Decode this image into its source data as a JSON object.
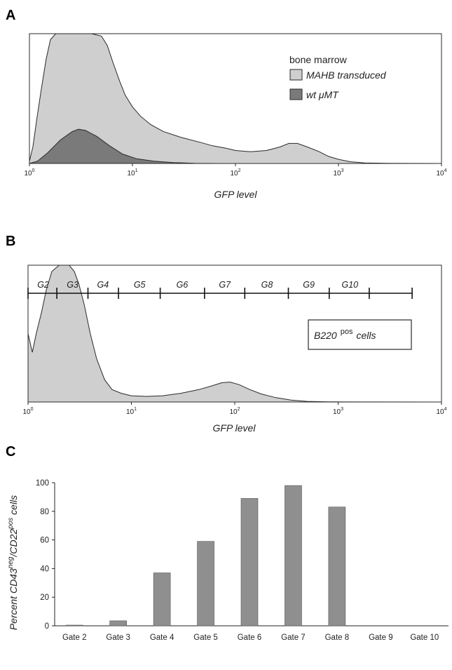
{
  "panels": {
    "a": {
      "letter": "A"
    },
    "b": {
      "letter": "B"
    },
    "c": {
      "letter": "C"
    }
  },
  "colors": {
    "light_fill": "#cfcfcf",
    "dark_fill": "#7a7a7a",
    "bar_fill": "#8f8f8f",
    "outline": "#2a2a2a"
  },
  "chart_data": [
    {
      "panel": "A",
      "type": "area",
      "xlabel": "GFP level",
      "ylabel": "",
      "x_scale": "log",
      "xlim": [
        1,
        10000
      ],
      "x_ticks": [
        {
          "base": "10",
          "exp": "0",
          "value": 1
        },
        {
          "base": "10",
          "exp": "1",
          "value": 10
        },
        {
          "base": "10",
          "exp": "2",
          "value": 100
        },
        {
          "base": "10",
          "exp": "3",
          "value": 1000
        },
        {
          "base": "10",
          "exp": "4",
          "value": 10000
        }
      ],
      "legend_title": "bone marrow",
      "legend_position": "top-right",
      "series": [
        {
          "name": "MAHB transduced",
          "color": "#cfcfcf",
          "points": [
            {
              "x": 1.0,
              "y": 0.02
            },
            {
              "x": 1.08,
              "y": 0.14
            },
            {
              "x": 1.18,
              "y": 0.38
            },
            {
              "x": 1.3,
              "y": 0.62
            },
            {
              "x": 1.45,
              "y": 0.88
            },
            {
              "x": 1.6,
              "y": 1.05
            },
            {
              "x": 1.8,
              "y": 1.1
            },
            {
              "x": 2.2,
              "y": 1.1
            },
            {
              "x": 3.0,
              "y": 1.1
            },
            {
              "x": 4.0,
              "y": 1.1
            },
            {
              "x": 5.0,
              "y": 1.08
            },
            {
              "x": 5.7,
              "y": 1.0
            },
            {
              "x": 6.5,
              "y": 0.85
            },
            {
              "x": 7.5,
              "y": 0.7
            },
            {
              "x": 8.5,
              "y": 0.58
            },
            {
              "x": 10,
              "y": 0.48
            },
            {
              "x": 12,
              "y": 0.4
            },
            {
              "x": 15,
              "y": 0.33
            },
            {
              "x": 20,
              "y": 0.27
            },
            {
              "x": 30,
              "y": 0.22
            },
            {
              "x": 45,
              "y": 0.18
            },
            {
              "x": 60,
              "y": 0.15
            },
            {
              "x": 80,
              "y": 0.13
            },
            {
              "x": 100,
              "y": 0.11
            },
            {
              "x": 140,
              "y": 0.1
            },
            {
              "x": 200,
              "y": 0.11
            },
            {
              "x": 270,
              "y": 0.14
            },
            {
              "x": 330,
              "y": 0.17
            },
            {
              "x": 400,
              "y": 0.17
            },
            {
              "x": 500,
              "y": 0.14
            },
            {
              "x": 650,
              "y": 0.1
            },
            {
              "x": 800,
              "y": 0.06
            },
            {
              "x": 1000,
              "y": 0.035
            },
            {
              "x": 1300,
              "y": 0.015
            },
            {
              "x": 1800,
              "y": 0.005
            },
            {
              "x": 3000,
              "y": 0.001
            },
            {
              "x": 10000,
              "y": 0.0
            }
          ]
        },
        {
          "name": "wt μMT",
          "color": "#7a7a7a",
          "points": [
            {
              "x": 1.0,
              "y": 0.0
            },
            {
              "x": 1.2,
              "y": 0.02
            },
            {
              "x": 1.5,
              "y": 0.09
            },
            {
              "x": 2.0,
              "y": 0.2
            },
            {
              "x": 2.6,
              "y": 0.27
            },
            {
              "x": 3.0,
              "y": 0.29
            },
            {
              "x": 3.5,
              "y": 0.28
            },
            {
              "x": 4.5,
              "y": 0.23
            },
            {
              "x": 6.0,
              "y": 0.15
            },
            {
              "x": 8.0,
              "y": 0.08
            },
            {
              "x": 11,
              "y": 0.04
            },
            {
              "x": 16,
              "y": 0.02
            },
            {
              "x": 25,
              "y": 0.008
            },
            {
              "x": 40,
              "y": 0.002
            },
            {
              "x": 70,
              "y": 0.0
            },
            {
              "x": 10000,
              "y": 0.0
            }
          ]
        }
      ]
    },
    {
      "panel": "B",
      "type": "area",
      "xlabel": "GFP level",
      "ylabel": "",
      "x_scale": "log",
      "xlim": [
        1,
        10000
      ],
      "x_ticks": [
        {
          "base": "10",
          "exp": "0",
          "value": 1
        },
        {
          "base": "10",
          "exp": "1",
          "value": 10
        },
        {
          "base": "10",
          "exp": "2",
          "value": 100
        },
        {
          "base": "10",
          "exp": "3",
          "value": 1000
        },
        {
          "base": "10",
          "exp": "4",
          "value": 10000
        }
      ],
      "annotation": {
        "main": "B220",
        "sup": "pos",
        "tail": "cells"
      },
      "gate_marks": [
        1,
        1.9,
        3.8,
        7.5,
        19,
        51,
        125,
        330,
        820,
        2000,
        5200
      ],
      "gates": [
        {
          "label": "G2",
          "x": 1.4
        },
        {
          "label": "G3",
          "x": 2.7
        },
        {
          "label": "G4",
          "x": 5.3
        },
        {
          "label": "G5",
          "x": 12
        },
        {
          "label": "G6",
          "x": 31
        },
        {
          "label": "G7",
          "x": 80
        },
        {
          "label": "G8",
          "x": 205
        },
        {
          "label": "G9",
          "x": 520
        },
        {
          "label": "G10",
          "x": 1300
        }
      ],
      "series": [
        {
          "name": "",
          "color": "#cfcfcf",
          "points": [
            {
              "x": 1.0,
              "y": 0.55
            },
            {
              "x": 1.1,
              "y": 0.4
            },
            {
              "x": 1.2,
              "y": 0.55
            },
            {
              "x": 1.35,
              "y": 0.72
            },
            {
              "x": 1.5,
              "y": 0.9
            },
            {
              "x": 1.7,
              "y": 1.05
            },
            {
              "x": 2.0,
              "y": 1.1
            },
            {
              "x": 2.5,
              "y": 1.1
            },
            {
              "x": 2.8,
              "y": 1.05
            },
            {
              "x": 3.1,
              "y": 0.95
            },
            {
              "x": 3.5,
              "y": 0.78
            },
            {
              "x": 4.0,
              "y": 0.55
            },
            {
              "x": 4.6,
              "y": 0.35
            },
            {
              "x": 5.5,
              "y": 0.18
            },
            {
              "x": 6.5,
              "y": 0.1
            },
            {
              "x": 8.0,
              "y": 0.07
            },
            {
              "x": 10,
              "y": 0.05
            },
            {
              "x": 14,
              "y": 0.045
            },
            {
              "x": 20,
              "y": 0.05
            },
            {
              "x": 30,
              "y": 0.07
            },
            {
              "x": 45,
              "y": 0.1
            },
            {
              "x": 60,
              "y": 0.13
            },
            {
              "x": 75,
              "y": 0.155
            },
            {
              "x": 90,
              "y": 0.16
            },
            {
              "x": 110,
              "y": 0.14
            },
            {
              "x": 140,
              "y": 0.1
            },
            {
              "x": 180,
              "y": 0.065
            },
            {
              "x": 250,
              "y": 0.035
            },
            {
              "x": 350,
              "y": 0.015
            },
            {
              "x": 500,
              "y": 0.005
            },
            {
              "x": 800,
              "y": 0.001
            },
            {
              "x": 10000,
              "y": 0.0
            }
          ]
        }
      ]
    },
    {
      "panel": "C",
      "type": "bar",
      "ylabel_parts": {
        "pre": "Percent CD43",
        "sup1": "neg",
        "mid": "/CD22",
        "sup2": "pos",
        "post": " cells"
      },
      "ylim": [
        0,
        100
      ],
      "y_ticks": [
        "0",
        "20",
        "40",
        "60",
        "80",
        "100"
      ],
      "categories": [
        "Gate 2",
        "Gate 3",
        "Gate 4",
        "Gate 5",
        "Gate 6",
        "Gate 7",
        "Gate 8",
        "Gate 9",
        "Gate 10"
      ],
      "values": [
        0.4,
        3.5,
        37,
        59,
        89,
        98,
        83,
        0,
        0
      ]
    }
  ]
}
